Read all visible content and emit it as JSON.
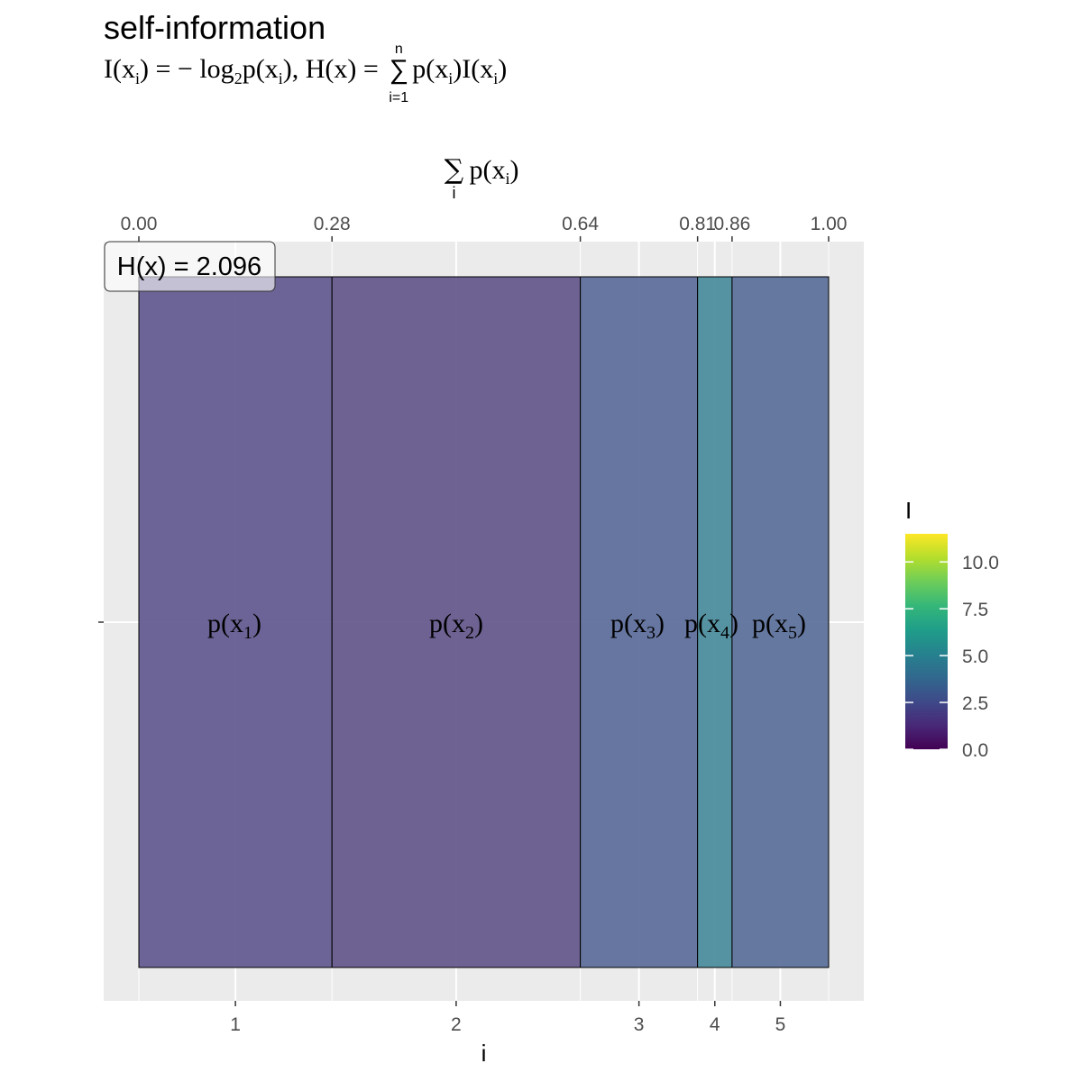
{
  "title": "self-information",
  "formula": {
    "lhs_I": "I(x",
    "sub_i": "i",
    "close": ")",
    "eq": " = − log",
    "sub_2": "2",
    "p_of": "p(x",
    "close_comma": "), H(x) = ",
    "sum_sign": "∑",
    "sum_top": "n",
    "sum_bottom": "i=1",
    "rhs": "p(x",
    "rhs_mid": ")I(x",
    "rhs_end": ")"
  },
  "chart_data": {
    "type": "bar",
    "variant": "variable-width stacked bar (Marimekko)",
    "xlabel": "i",
    "x2label_main": "∑",
    "x2label_sub": "i",
    "x2label_text": "p(x",
    "x2label_text_sub": "i",
    "x2label_text_end": ")",
    "top_ticks": [
      0.0,
      0.28,
      0.64,
      0.81,
      0.86,
      1.0
    ],
    "top_tick_labels": [
      "0.00",
      "0.28",
      "0.64",
      "0.81",
      "0.86",
      "1.00"
    ],
    "bottom_tick_labels": [
      "1",
      "2",
      "3",
      "4",
      "5"
    ],
    "segments": [
      {
        "i": 1,
        "p": 0.28,
        "I": 1.84,
        "label": "p(x",
        "label_sub": "1",
        "color": "#655D91"
      },
      {
        "i": 2,
        "p": 0.36,
        "I": 1.47,
        "label": "p(x",
        "label_sub": "2",
        "color": "#675B8D"
      },
      {
        "i": 3,
        "p": 0.17,
        "I": 2.56,
        "label": "p(x",
        "label_sub": "3",
        "color": "#5F709C"
      },
      {
        "i": 4,
        "p": 0.05,
        "I": 4.32,
        "label": "p(x",
        "label_sub": "4",
        "color": "#4E8E9E"
      },
      {
        "i": 5,
        "p": 0.14,
        "I": 2.84,
        "label": "p(x",
        "label_sub": "5",
        "color": "#5E729C"
      }
    ],
    "entropy_label": "H(x) = 2.096",
    "legend": {
      "title": "I",
      "range": [
        0,
        11.5
      ],
      "ticks": [
        0.0,
        2.5,
        5.0,
        7.5,
        10.0
      ],
      "tick_labels": [
        "0.0",
        "2.5",
        "5.0",
        "7.5",
        "10.0"
      ],
      "position": "right"
    },
    "panel_color": "#EBEBEB",
    "grid_color": "#FFFFFF"
  }
}
